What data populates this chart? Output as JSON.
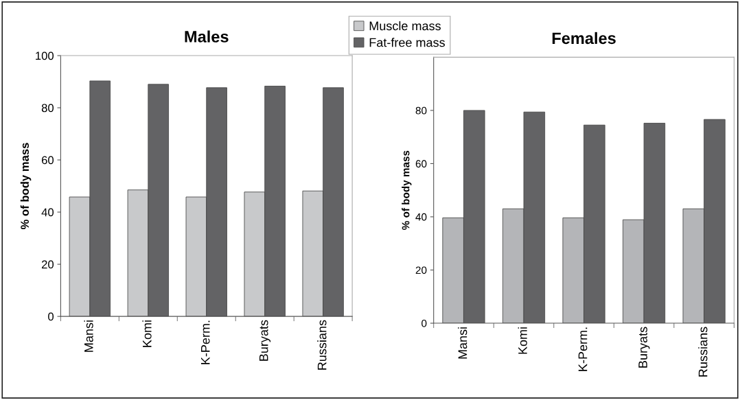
{
  "chart_data": [
    {
      "type": "bar",
      "title": "Males",
      "ylabel": "% of body mass",
      "categories": [
        "Mansi",
        "Komi",
        "K-Perm.",
        "Buryats",
        "Russians"
      ],
      "ylim": [
        0,
        100
      ],
      "yticks": [
        0,
        20,
        40,
        60,
        80,
        100
      ],
      "grid": false,
      "legend": "top right",
      "series": [
        {
          "name": "Muscle mass",
          "color": "#c8c9cb",
          "values": [
            45.8,
            48.5,
            45.8,
            47.7,
            48.1
          ]
        },
        {
          "name": "Fat-free mass",
          "color": "#636365",
          "values": [
            90.3,
            89.0,
            87.7,
            88.3,
            87.7
          ]
        }
      ]
    },
    {
      "type": "bar",
      "title": "Females",
      "ylabel": "% of body mass",
      "categories": [
        "Mansi",
        "Komi",
        "K-Perm.",
        "Buryats",
        "Russians"
      ],
      "ylim": [
        0,
        100
      ],
      "yticks": [
        0,
        20,
        40,
        60,
        80
      ],
      "grid": false,
      "series": [
        {
          "color": "#b4b5b8",
          "values": [
            39.6,
            43.0,
            39.6,
            38.9,
            43.0
          ]
        },
        {
          "color": "#636365",
          "values": [
            80.0,
            79.4,
            74.5,
            75.2,
            76.6
          ]
        }
      ]
    }
  ]
}
